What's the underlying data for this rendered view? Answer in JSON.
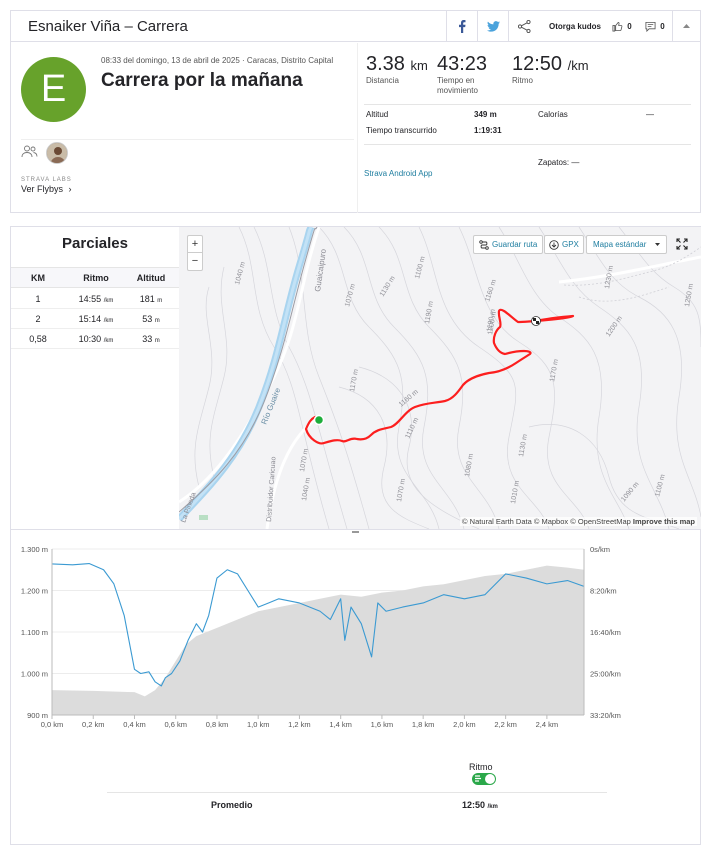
{
  "header": {
    "title": "Esnaiker Viña – Carrera",
    "kudos_label": "Otorga kudos",
    "kudos_count": "0",
    "comments_count": "0"
  },
  "activity": {
    "avatar_letter": "E",
    "date_location": "08:33 del domingo, 13 de abril de 2025 · Caracas, Distrito Capital",
    "name": "Carrera por la mañana",
    "labs_label": "STRAVA LABS",
    "flybys_label": "Ver Flybys",
    "stats": [
      {
        "value": "3.38",
        "unit": "km",
        "label": "Distancia"
      },
      {
        "value": "43:23",
        "unit": "",
        "label": "Tiempo en movimiento"
      },
      {
        "value": "12:50",
        "unit": "/km",
        "label": "Ritmo"
      }
    ],
    "details": {
      "elevation_label": "Altitud",
      "elevation_value": "349 m",
      "calories_label": "Calorías",
      "calories_value": "—",
      "elapsed_label": "Tiempo transcurrido",
      "elapsed_value": "1:19:31",
      "device": "Strava Android App",
      "shoes_label": "Zapatos:",
      "shoes_value": "—"
    }
  },
  "splits": {
    "title": "Parciales",
    "columns": [
      "KM",
      "Ritmo",
      "Altitud"
    ],
    "rows": [
      {
        "km": "1",
        "pace": "14:55",
        "pace_unit": "/km",
        "elev": "181",
        "elev_unit": "m"
      },
      {
        "km": "2",
        "pace": "15:14",
        "pace_unit": "/km",
        "elev": "53",
        "elev_unit": "m"
      },
      {
        "km": "0,58",
        "pace": "10:30",
        "pace_unit": "/km",
        "elev": "33",
        "elev_unit": "m"
      }
    ]
  },
  "map": {
    "save_route": "Guardar ruta",
    "gpx": "GPX",
    "map_type": "Mapa estándar",
    "zoom_in": "+",
    "zoom_out": "−",
    "attribution": "© Natural Earth Data © Mapbox © OpenStreetMap",
    "improve": "Improve this map",
    "labels": {
      "river": "Río Guaire",
      "guaicaipuro": "Guaicaipuro",
      "distribuidor": "Distribuidor Caricuao",
      "pineda": "La Pineda"
    },
    "contours": [
      "1040 m",
      "1070 m",
      "1130 m",
      "1100 m",
      "1160 m",
      "1170 m",
      "1190 m",
      "1190 m",
      "1110 m",
      "1160 m",
      "1070 m",
      "1070 m",
      "1040 m",
      "1010 m",
      "1170 m",
      "1200 m",
      "1230 m",
      "1200 m",
      "1130 m",
      "1080 m",
      "1090 m",
      "1100 m",
      "1250 m"
    ]
  },
  "chart_data": {
    "type": "area",
    "x_ticks": [
      "0,0 km",
      "0,2 km",
      "0,4 km",
      "0,6 km",
      "0,8 km",
      "1,0 km",
      "1,2 km",
      "1,4 km",
      "1,6 km",
      "1,8 km",
      "2,0 km",
      "2,2 km",
      "2,4 km"
    ],
    "y_left_ticks": [
      "1.300 m",
      "1.200 m",
      "1.100 m",
      "1.000 m",
      "900 m"
    ],
    "y_right_ticks": [
      "0s/km",
      "8:20/km",
      "16:40/km",
      "25:00/km",
      "33:20/km"
    ],
    "xlim": [
      0,
      2.58
    ],
    "ylim_left": [
      900,
      1300
    ],
    "ylim_right_sec_per_km": [
      0,
      2000
    ],
    "grid": true,
    "series": [
      {
        "name": "Altitud",
        "color": "#dcdcdc",
        "x": [
          0,
          0.2,
          0.4,
          0.45,
          0.5,
          0.55,
          0.6,
          0.65,
          0.7,
          0.8,
          0.9,
          1.0,
          1.1,
          1.2,
          1.3,
          1.4,
          1.5,
          1.6,
          1.7,
          1.8,
          1.9,
          2.0,
          2.1,
          2.2,
          2.3,
          2.4,
          2.5,
          2.58
        ],
        "values": [
          960,
          958,
          955,
          945,
          960,
          990,
          1030,
          1070,
          1090,
          1110,
          1130,
          1150,
          1160,
          1170,
          1180,
          1190,
          1185,
          1195,
          1200,
          1210,
          1215,
          1225,
          1235,
          1240,
          1250,
          1260,
          1255,
          1250
        ]
      },
      {
        "name": "Ritmo",
        "color": "#3b9ad2",
        "x": [
          0,
          0.1,
          0.18,
          0.25,
          0.3,
          0.35,
          0.4,
          0.43,
          0.47,
          0.5,
          0.53,
          0.55,
          0.58,
          0.62,
          0.66,
          0.7,
          0.73,
          0.76,
          0.8,
          0.85,
          0.9,
          0.95,
          1.0,
          1.05,
          1.1,
          1.2,
          1.3,
          1.35,
          1.4,
          1.42,
          1.45,
          1.5,
          1.55,
          1.58,
          1.62,
          1.7,
          1.8,
          1.9,
          2.0,
          2.1,
          2.2,
          2.3,
          2.4,
          2.5,
          2.58
        ],
        "values": [
          180,
          190,
          175,
          250,
          420,
          800,
          1450,
          1500,
          1480,
          1600,
          1650,
          1550,
          1500,
          1350,
          1100,
          900,
          1000,
          800,
          350,
          250,
          300,
          500,
          700,
          650,
          600,
          650,
          750,
          850,
          600,
          1100,
          700,
          900,
          1300,
          650,
          750,
          700,
          650,
          550,
          600,
          550,
          300,
          350,
          420,
          380,
          450
        ]
      }
    ]
  },
  "legend": {
    "label": "Ritmo",
    "average_label": "Promedio",
    "average_value": "12:50",
    "average_unit": "/km"
  }
}
